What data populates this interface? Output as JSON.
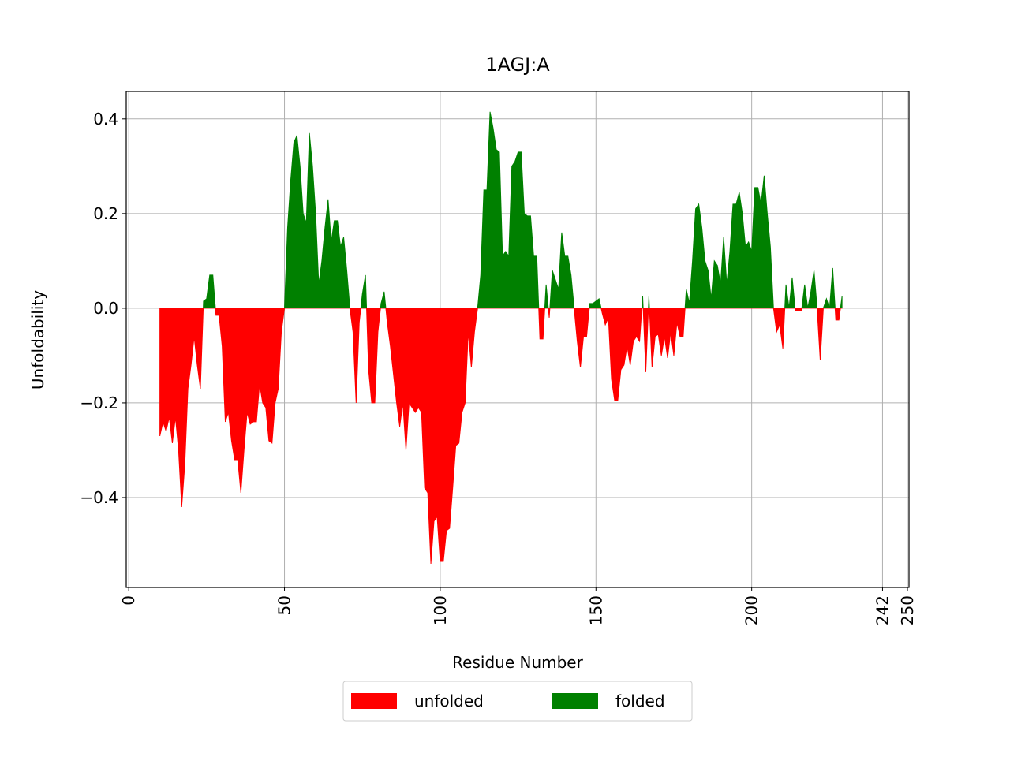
{
  "chart_data": {
    "type": "area",
    "title": "1AGJ:A",
    "x_label": "Residue Number",
    "y_label": "Unfoldability",
    "x": [
      10,
      11,
      12,
      13,
      14,
      15,
      16,
      17,
      18,
      19,
      20,
      21,
      22,
      23,
      24,
      25,
      26,
      27,
      28,
      29,
      30,
      31,
      32,
      33,
      34,
      35,
      36,
      37,
      38,
      39,
      40,
      41,
      42,
      43,
      44,
      45,
      46,
      47,
      48,
      49,
      50,
      51,
      52,
      53,
      54,
      55,
      56,
      57,
      58,
      59,
      60,
      61,
      62,
      63,
      64,
      65,
      66,
      67,
      68,
      69,
      70,
      71,
      72,
      73,
      74,
      75,
      76,
      77,
      78,
      79,
      80,
      81,
      82,
      83,
      84,
      85,
      86,
      87,
      88,
      89,
      90,
      91,
      92,
      93,
      94,
      95,
      96,
      97,
      98,
      99,
      100,
      101,
      102,
      103,
      104,
      105,
      106,
      107,
      108,
      109,
      110,
      111,
      112,
      113,
      114,
      115,
      116,
      117,
      118,
      119,
      120,
      121,
      122,
      123,
      124,
      125,
      126,
      127,
      128,
      129,
      130,
      131,
      132,
      133,
      134,
      135,
      136,
      137,
      138,
      139,
      140,
      141,
      142,
      143,
      144,
      145,
      146,
      147,
      148,
      149,
      150,
      151,
      152,
      153,
      154,
      155,
      156,
      157,
      158,
      159,
      160,
      161,
      162,
      163,
      164,
      165,
      166,
      167,
      168,
      169,
      170,
      171,
      172,
      173,
      174,
      175,
      176,
      177,
      178,
      179,
      180,
      181,
      182,
      183,
      184,
      185,
      186,
      187,
      188,
      189,
      190,
      191,
      192,
      193,
      194,
      195,
      196,
      197,
      198,
      199,
      200,
      201,
      202,
      203,
      204,
      205,
      206,
      207,
      208,
      209,
      210,
      211,
      212,
      213,
      214,
      215,
      216,
      217,
      218,
      219,
      220,
      221,
      222,
      223,
      224,
      225,
      226,
      227,
      228,
      229
    ],
    "values": [
      -0.27,
      -0.24,
      -0.26,
      -0.23,
      -0.285,
      -0.23,
      -0.3,
      -0.42,
      -0.33,
      -0.17,
      -0.12,
      -0.06,
      -0.12,
      -0.17,
      0.015,
      0.02,
      0.07,
      0.07,
      -0.015,
      -0.015,
      -0.08,
      -0.24,
      -0.22,
      -0.28,
      -0.32,
      -0.32,
      -0.39,
      -0.3,
      -0.22,
      -0.245,
      -0.24,
      -0.24,
      -0.16,
      -0.2,
      -0.21,
      -0.28,
      -0.285,
      -0.2,
      -0.17,
      -0.05,
      0.0,
      0.17,
      0.27,
      0.35,
      0.365,
      0.3,
      0.2,
      0.18,
      0.37,
      0.3,
      0.2,
      0.05,
      0.1,
      0.17,
      0.23,
      0.14,
      0.185,
      0.185,
      0.13,
      0.15,
      0.08,
      0.0,
      -0.05,
      -0.2,
      -0.03,
      0.03,
      0.07,
      -0.13,
      -0.2,
      -0.2,
      -0.05,
      0.01,
      0.035,
      -0.03,
      -0.08,
      -0.14,
      -0.2,
      -0.25,
      -0.2,
      -0.3,
      -0.2,
      -0.21,
      -0.22,
      -0.21,
      -0.22,
      -0.38,
      -0.39,
      -0.54,
      -0.45,
      -0.44,
      -0.535,
      -0.535,
      -0.47,
      -0.465,
      -0.38,
      -0.29,
      -0.285,
      -0.22,
      -0.2,
      -0.05,
      -0.125,
      -0.05,
      0.0,
      0.07,
      0.25,
      0.25,
      0.415,
      0.38,
      0.335,
      0.33,
      0.11,
      0.12,
      0.11,
      0.3,
      0.31,
      0.33,
      0.33,
      0.2,
      0.195,
      0.195,
      0.11,
      0.11,
      -0.065,
      -0.065,
      0.05,
      -0.02,
      0.08,
      0.06,
      0.04,
      0.16,
      0.11,
      0.11,
      0.07,
      0.0,
      -0.07,
      -0.125,
      -0.06,
      -0.06,
      0.01,
      0.01,
      0.015,
      0.02,
      -0.01,
      -0.035,
      -0.02,
      -0.15,
      -0.195,
      -0.195,
      -0.13,
      -0.12,
      -0.08,
      -0.12,
      -0.07,
      -0.06,
      -0.07,
      0.025,
      -0.135,
      0.025,
      -0.125,
      -0.06,
      -0.055,
      -0.1,
      -0.06,
      -0.105,
      -0.05,
      -0.1,
      -0.03,
      -0.06,
      -0.06,
      0.04,
      0.01,
      0.1,
      0.21,
      0.22,
      0.17,
      0.1,
      0.08,
      0.02,
      0.1,
      0.09,
      0.05,
      0.15,
      0.05,
      0.12,
      0.22,
      0.22,
      0.245,
      0.2,
      0.13,
      0.14,
      0.12,
      0.255,
      0.255,
      0.22,
      0.28,
      0.2,
      0.13,
      0.0,
      -0.05,
      -0.035,
      -0.085,
      0.05,
      0.0,
      0.065,
      -0.005,
      -0.005,
      -0.005,
      0.05,
      0.0,
      0.035,
      0.08,
      0.0,
      -0.11,
      0.0,
      0.02,
      0.0,
      0.085,
      -0.025,
      -0.025,
      0.025
    ],
    "legend": [
      {
        "name": "unfolded",
        "color": "#ff0000"
      },
      {
        "name": "folded",
        "color": "#008000"
      }
    ],
    "legend_position": "lower center",
    "xlim": [
      -0.8,
      250.5
    ],
    "xticks": [
      0,
      50,
      100,
      150,
      200,
      242,
      250
    ],
    "ylim": [
      -0.59,
      0.458
    ],
    "yticks": [
      {
        "value": -0.4,
        "label": "−0.4"
      },
      {
        "value": -0.2,
        "label": "−0.2"
      },
      {
        "value": 0,
        "label": "0.0"
      },
      0.2,
      0.4
    ],
    "grid": true
  }
}
